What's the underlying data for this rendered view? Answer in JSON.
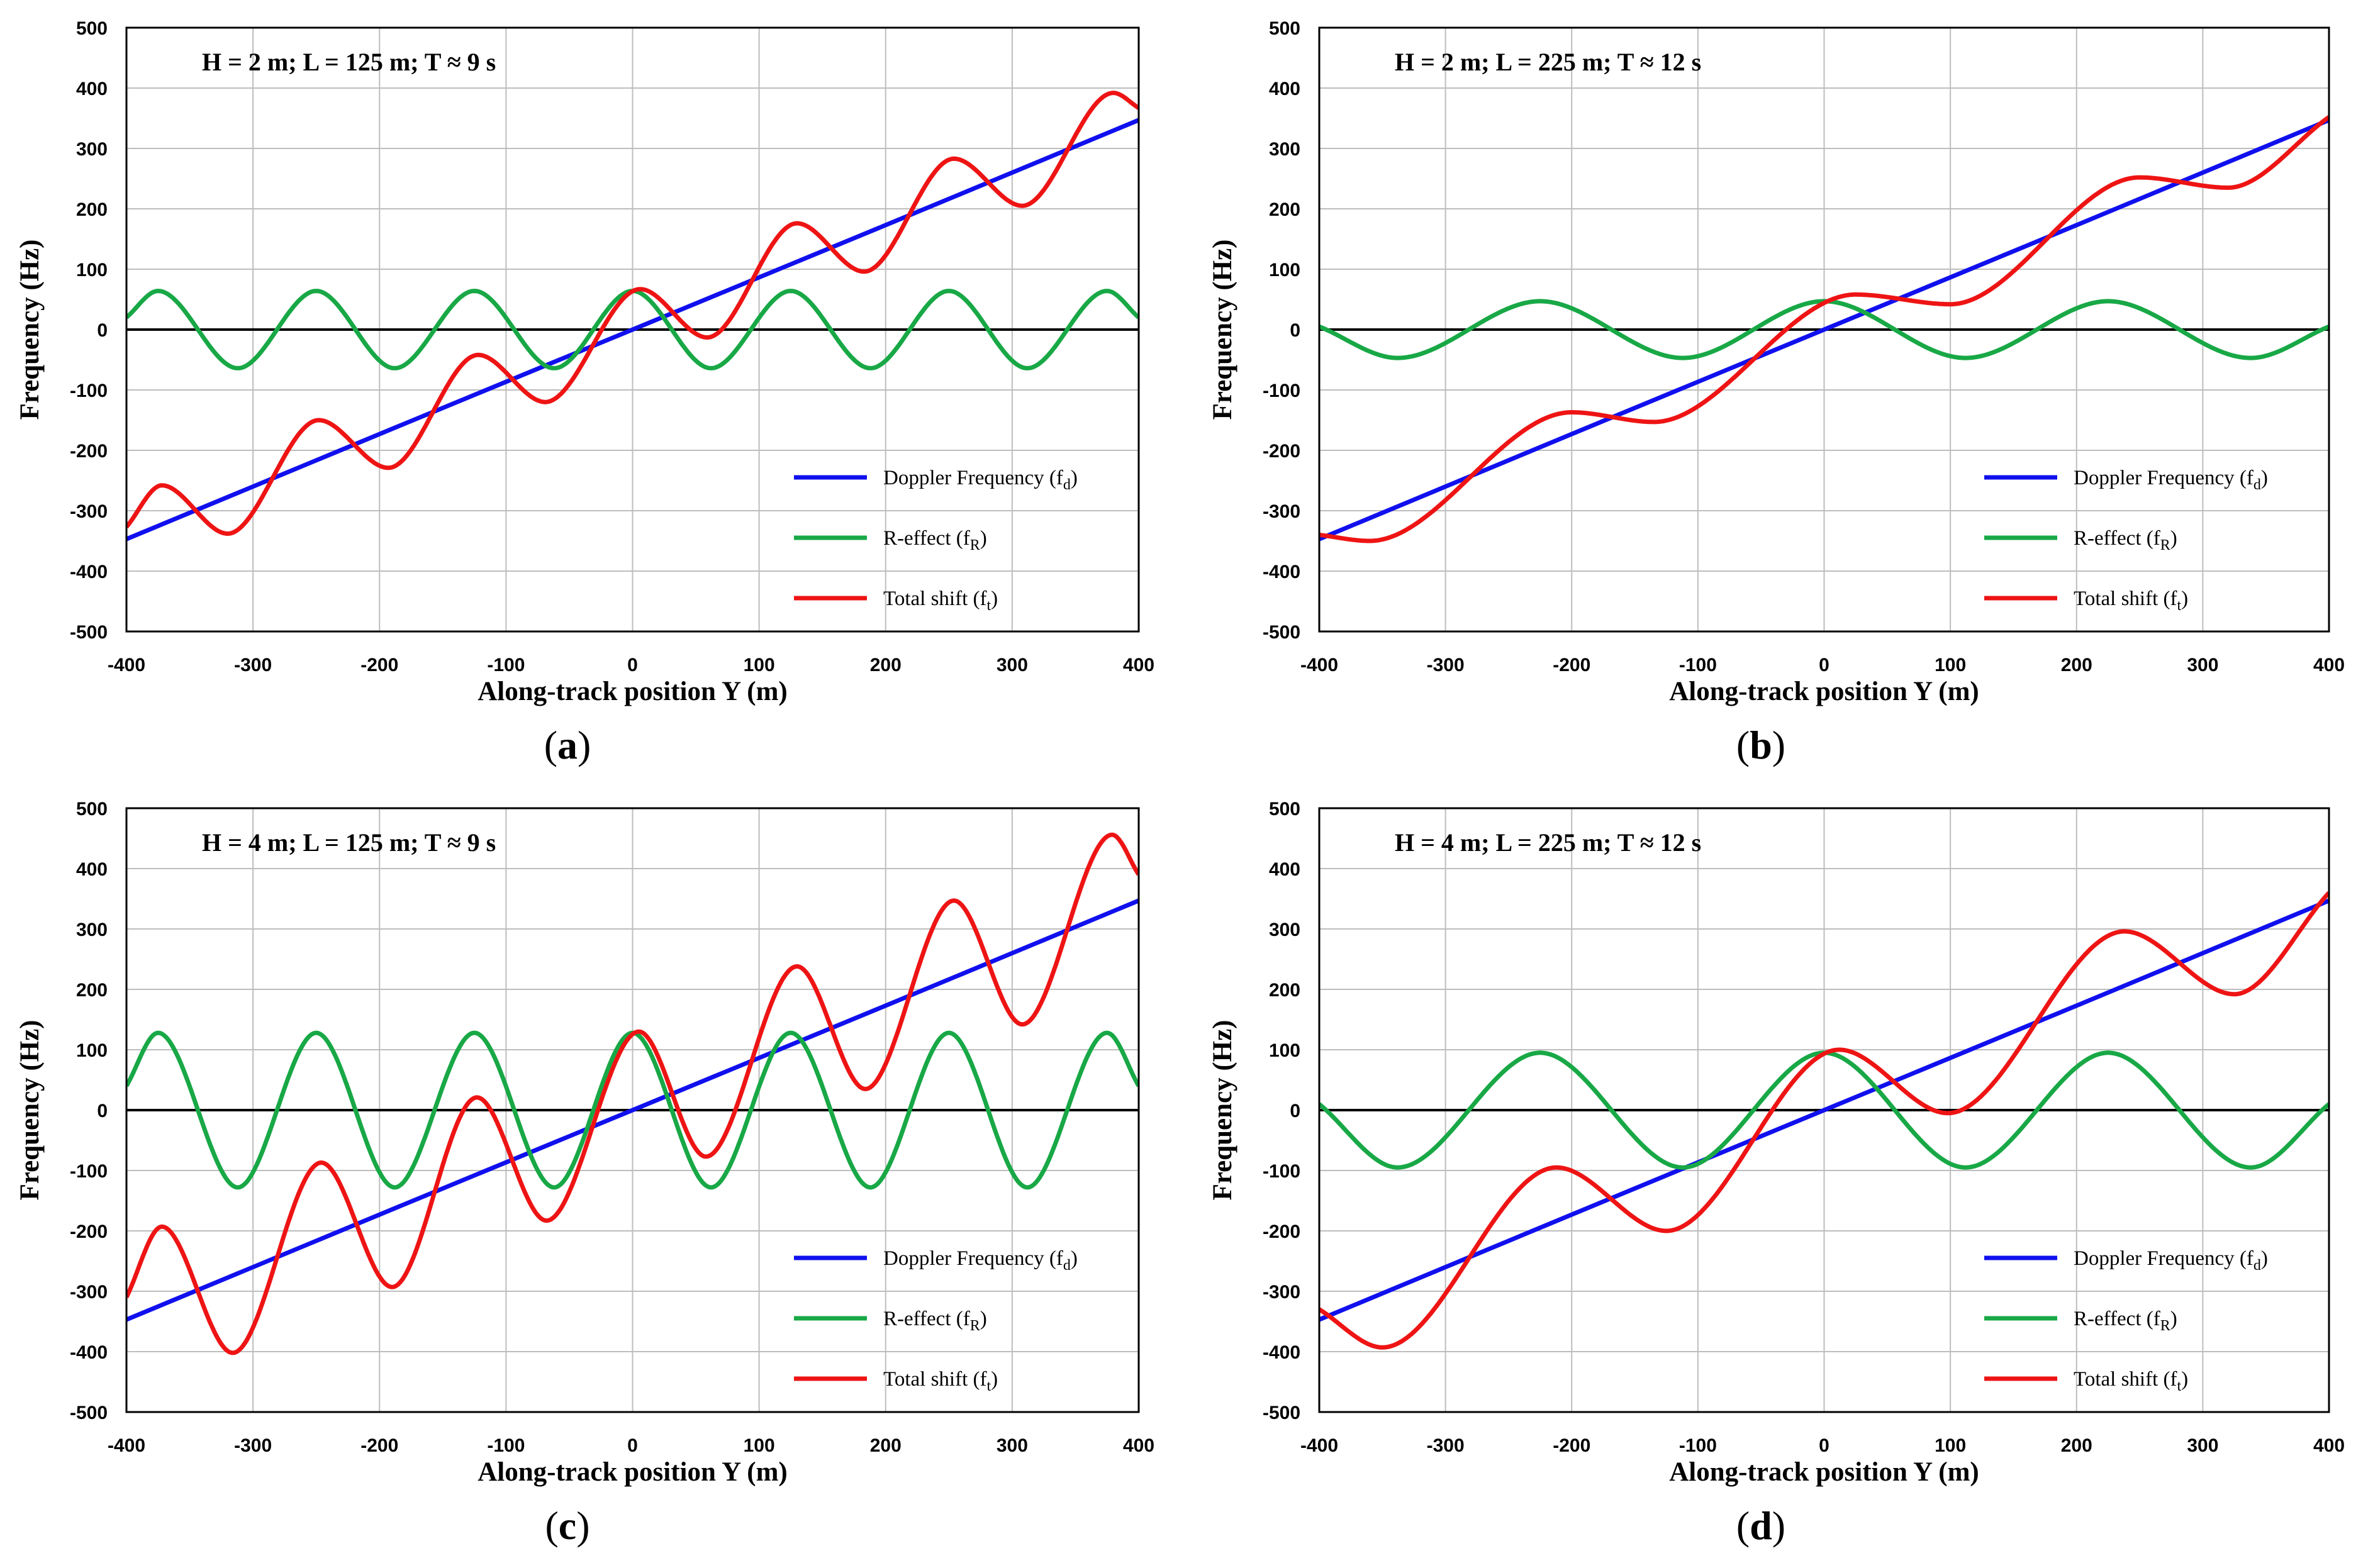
{
  "colors": {
    "doppler": "#1010ee",
    "r_effect": "#18a846",
    "total": "#ee1414",
    "grid": "#bdbdbd",
    "zero_line": "#000000"
  },
  "chart_data": [
    {
      "type": "line",
      "panel_label": "a",
      "annotation": "H = 2 m; L = 125 m; T ≈ 9 s",
      "xlabel": "Along-track position Y (m)",
      "ylabel": "Frequency (Hz)",
      "xlim": [
        -400,
        400
      ],
      "ylim": [
        -500,
        500
      ],
      "xticks": [
        "-400",
        "-300",
        "-200",
        "-100",
        "0",
        "100",
        "200",
        "300",
        "400"
      ],
      "yticks": [
        "500",
        "400",
        "300",
        "200",
        "100",
        "0",
        "-100",
        "-200",
        "-300",
        "-400",
        "-500"
      ],
      "grid": true,
      "legend_position": "bottom-right",
      "legend": [
        {
          "label": "Doppler Frequency (f",
          "sub": "d",
          "close": ")"
        },
        {
          "label": "R-effect (f",
          "sub": "R",
          "close": ")"
        },
        {
          "label": "Total shift (f",
          "sub": "t",
          "close": ")"
        }
      ],
      "wave_amplitude_hz": 64,
      "wavelength_m": 125,
      "series": [
        {
          "name": "Doppler Frequency (fd)",
          "x": [
            -400,
            -200,
            0,
            200,
            400
          ],
          "values": [
            -347,
            -173,
            0,
            173,
            347
          ]
        },
        {
          "name": "R-effect (fR)",
          "x": [
            -400,
            -375,
            -312,
            -250,
            -188,
            -125,
            -62,
            0,
            62,
            125,
            188,
            250,
            312,
            375,
            400
          ],
          "values": [
            20,
            64,
            -64,
            64,
            -64,
            64,
            -64,
            64,
            -64,
            64,
            -64,
            64,
            -64,
            64,
            20
          ]
        },
        {
          "name": "Total shift (ft)",
          "x": [
            -400,
            -372,
            -320,
            -248,
            -193,
            -122,
            -69,
            6,
            59,
            130,
            183,
            254,
            308,
            380,
            400
          ],
          "values": [
            -327,
            -258,
            -338,
            -150,
            -229,
            -42,
            -120,
            67,
            -13,
            176,
            96,
            283,
            205,
            392,
            367
          ]
        }
      ]
    },
    {
      "type": "line",
      "panel_label": "b",
      "annotation": "H = 2 m; L = 225 m; T ≈ 12 s",
      "xlabel": "Along-track position Y (m)",
      "ylabel": "Frequency (Hz)",
      "xlim": [
        -400,
        400
      ],
      "ylim": [
        -500,
        500
      ],
      "xticks": [
        "-400",
        "-300",
        "-200",
        "-100",
        "0",
        "100",
        "200",
        "300",
        "400"
      ],
      "yticks": [
        "500",
        "400",
        "300",
        "200",
        "100",
        "0",
        "-100",
        "-200",
        "-300",
        "-400",
        "-500"
      ],
      "grid": true,
      "legend_position": "bottom-right",
      "legend": [
        {
          "label": "Doppler Frequency (f",
          "sub": "d",
          "close": ")"
        },
        {
          "label": "R-effect (f",
          "sub": "R",
          "close": ")"
        },
        {
          "label": "Total shift (f",
          "sub": "t",
          "close": ")"
        }
      ],
      "wave_amplitude_hz": 47,
      "wavelength_m": 225,
      "series": [
        {
          "name": "Doppler Frequency (fd)",
          "x": [
            -400,
            -200,
            0,
            200,
            400
          ],
          "values": [
            -347,
            -173,
            0,
            173,
            347
          ]
        },
        {
          "name": "R-effect (fR)",
          "x": [
            -400,
            -338,
            -225,
            -112,
            0,
            112,
            225,
            338,
            400
          ],
          "values": [
            5,
            -47,
            47,
            -47,
            47,
            -47,
            47,
            -47,
            5
          ]
        },
        {
          "name": "Total shift (ft)",
          "x": [
            -400,
            -360,
            -200,
            -135,
            25,
            100,
            250,
            320,
            400
          ],
          "values": [
            -340,
            -350,
            -137,
            -153,
            58,
            42,
            252,
            235,
            352
          ]
        }
      ]
    },
    {
      "type": "line",
      "panel_label": "c",
      "annotation": "H = 4 m; L = 125 m; T ≈ 9 s",
      "xlabel": "Along-track position Y (m)",
      "ylabel": "Frequency (Hz)",
      "xlim": [
        -400,
        400
      ],
      "ylim": [
        -500,
        500
      ],
      "xticks": [
        "-400",
        "-300",
        "-200",
        "-100",
        "0",
        "100",
        "200",
        "300",
        "400"
      ],
      "yticks": [
        "500",
        "400",
        "300",
        "200",
        "100",
        "0",
        "-100",
        "-200",
        "-300",
        "-400",
        "-500"
      ],
      "grid": true,
      "legend_position": "bottom-right",
      "legend": [
        {
          "label": "Doppler Frequency (f",
          "sub": "d",
          "close": ")"
        },
        {
          "label": "R-effect (f",
          "sub": "R",
          "close": ")"
        },
        {
          "label": "Total shift (f",
          "sub": "t",
          "close": ")"
        }
      ],
      "wave_amplitude_hz": 128,
      "wavelength_m": 125,
      "series": [
        {
          "name": "Doppler Frequency (fd)",
          "x": [
            -400,
            -200,
            0,
            200,
            400
          ],
          "values": [
            -347,
            -173,
            0,
            173,
            347
          ]
        },
        {
          "name": "R-effect (fR)",
          "x": [
            -400,
            -375,
            -312,
            -250,
            -188,
            -125,
            -62,
            0,
            62,
            125,
            188,
            250,
            312,
            375,
            400
          ],
          "values": [
            40,
            128,
            -128,
            128,
            -128,
            128,
            -128,
            128,
            -128,
            128,
            -128,
            128,
            -128,
            128,
            40
          ]
        },
        {
          "name": "Total shift (ft)",
          "x": [
            -400,
            -372,
            -316,
            -246,
            -190,
            -123,
            -68,
            5,
            58,
            130,
            184,
            254,
            308,
            379,
            400
          ],
          "values": [
            -310,
            -193,
            -402,
            -87,
            -293,
            21,
            -183,
            130,
            -77,
            238,
            35,
            347,
            142,
            456,
            390
          ]
        }
      ]
    },
    {
      "type": "line",
      "panel_label": "d",
      "annotation": "H = 4 m; L = 225 m; T ≈ 12 s",
      "xlabel": "Along-track position Y (m)",
      "ylabel": "Frequency (Hz)",
      "xlim": [
        -400,
        400
      ],
      "ylim": [
        -500,
        500
      ],
      "xticks": [
        "-400",
        "-300",
        "-200",
        "-100",
        "0",
        "100",
        "200",
        "300",
        "400"
      ],
      "yticks": [
        "500",
        "400",
        "300",
        "200",
        "100",
        "0",
        "-100",
        "-200",
        "-300",
        "-400",
        "-500"
      ],
      "grid": true,
      "legend_position": "bottom-right",
      "legend": [
        {
          "label": "Doppler Frequency (f",
          "sub": "d",
          "close": ")"
        },
        {
          "label": "R-effect (f",
          "sub": "R",
          "close": ")"
        },
        {
          "label": "Total shift (f",
          "sub": "t",
          "close": ")"
        }
      ],
      "wave_amplitude_hz": 95,
      "wavelength_m": 225,
      "series": [
        {
          "name": "Doppler Frequency (fd)",
          "x": [
            -400,
            -200,
            0,
            200,
            400
          ],
          "values": [
            -347,
            -173,
            0,
            173,
            347
          ]
        },
        {
          "name": "R-effect (fR)",
          "x": [
            -400,
            -338,
            -225,
            -112,
            0,
            112,
            225,
            338,
            400
          ],
          "values": [
            10,
            -95,
            95,
            -95,
            95,
            -95,
            95,
            -95,
            10
          ]
        },
        {
          "name": "Total shift (ft)",
          "x": [
            -400,
            -350,
            -212,
            -125,
            12,
            98,
            238,
            325,
            400
          ],
          "values": [
            -330,
            -393,
            -95,
            -200,
            100,
            -5,
            296,
            192,
            360
          ]
        }
      ]
    }
  ]
}
